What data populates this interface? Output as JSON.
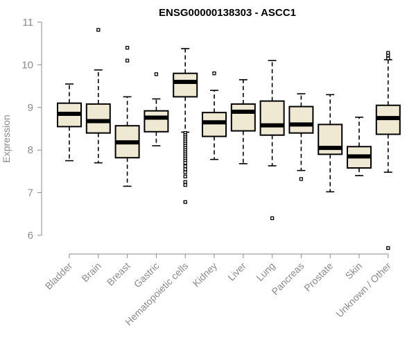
{
  "chart_data": {
    "type": "boxplot",
    "title": "ENSG00000138303 - ASCC1",
    "ylabel": "Expression",
    "xlabel": "",
    "ylim": [
      5.5,
      11.2
    ],
    "yticks": [
      6,
      7,
      8,
      9,
      10,
      11
    ],
    "grid": false,
    "colors": {
      "box_fill": "#efe8d2",
      "box_stroke": "#000000",
      "axis": "#8a8a8a"
    },
    "categories": [
      "Bladder",
      "Brain",
      "Breast",
      "Gastric",
      "Hematopoietic cells",
      "Kidney",
      "Liver",
      "Lung",
      "Pancreas",
      "Prostate",
      "Skin",
      "Unknown / Other"
    ],
    "boxes": [
      {
        "category": "Bladder",
        "min": 7.75,
        "q1": 8.55,
        "median": 8.85,
        "q3": 9.1,
        "max": 9.55,
        "outliers": []
      },
      {
        "category": "Brain",
        "min": 7.7,
        "q1": 8.4,
        "median": 8.68,
        "q3": 9.08,
        "max": 9.88,
        "outliers": [
          10.82
        ]
      },
      {
        "category": "Breast",
        "min": 7.15,
        "q1": 7.82,
        "median": 8.18,
        "q3": 8.57,
        "max": 9.25,
        "outliers": [
          10.1,
          10.4
        ]
      },
      {
        "category": "Gastric",
        "min": 8.1,
        "q1": 8.43,
        "median": 8.76,
        "q3": 8.92,
        "max": 9.2,
        "outliers": [
          9.78
        ]
      },
      {
        "category": "Hematopoietic cells",
        "min": 8.42,
        "q1": 9.25,
        "median": 9.6,
        "q3": 9.8,
        "max": 10.38,
        "outliers": [
          8.4,
          8.35,
          8.3,
          8.25,
          8.2,
          8.15,
          8.1,
          8.05,
          8.0,
          7.95,
          7.9,
          7.85,
          7.8,
          7.75,
          7.7,
          7.62,
          7.55,
          7.48,
          7.38,
          7.25,
          7.18,
          6.78
        ]
      },
      {
        "category": "Kidney",
        "min": 7.78,
        "q1": 8.32,
        "median": 8.65,
        "q3": 8.88,
        "max": 9.4,
        "outliers": [
          9.8
        ]
      },
      {
        "category": "Liver",
        "min": 7.68,
        "q1": 8.45,
        "median": 8.9,
        "q3": 9.08,
        "max": 9.65,
        "outliers": []
      },
      {
        "category": "Lung",
        "min": 7.63,
        "q1": 8.35,
        "median": 8.58,
        "q3": 9.15,
        "max": 10.1,
        "outliers": [
          6.4
        ]
      },
      {
        "category": "Pancreas",
        "min": 7.52,
        "q1": 8.4,
        "median": 8.6,
        "q3": 9.02,
        "max": 9.32,
        "outliers": [
          7.32
        ]
      },
      {
        "category": "Prostate",
        "min": 7.02,
        "q1": 7.9,
        "median": 8.05,
        "q3": 8.6,
        "max": 9.3,
        "outliers": []
      },
      {
        "category": "Skin",
        "min": 7.4,
        "q1": 7.58,
        "median": 7.85,
        "q3": 8.08,
        "max": 8.77,
        "outliers": []
      },
      {
        "category": "Unknown / Other",
        "min": 7.48,
        "q1": 8.37,
        "median": 8.75,
        "q3": 9.05,
        "max": 10.12,
        "outliers": [
          10.15,
          10.22,
          10.28,
          5.7
        ]
      }
    ]
  }
}
